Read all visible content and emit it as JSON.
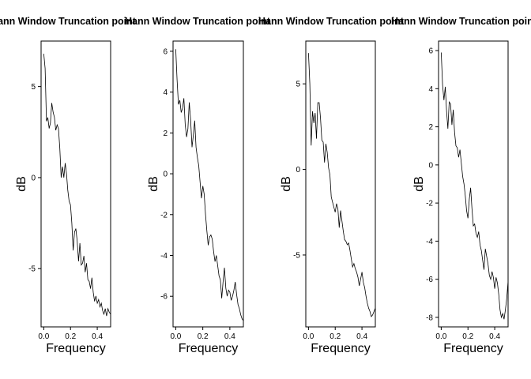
{
  "chart_data": [
    {
      "type": "line",
      "title": "Hann Window Truncation point",
      "xlabel": "Frequency",
      "ylabel": "dB",
      "xlim": [
        -0.02,
        0.5
      ],
      "ylim": [
        -8.2,
        7.5
      ],
      "xticks": [
        0.0,
        0.2,
        0.4
      ],
      "xtick_labels": [
        "0.0",
        "0.2",
        "0.4"
      ],
      "yticks": [
        -5,
        0,
        5
      ],
      "ytick_labels": [
        "-5",
        "0",
        "5"
      ],
      "grid": false,
      "x": [
        0.0,
        0.01,
        0.02,
        0.03,
        0.04,
        0.05,
        0.06,
        0.07,
        0.08,
        0.09,
        0.1,
        0.11,
        0.12,
        0.13,
        0.14,
        0.15,
        0.16,
        0.17,
        0.18,
        0.19,
        0.2,
        0.21,
        0.22,
        0.23,
        0.24,
        0.25,
        0.26,
        0.27,
        0.28,
        0.29,
        0.3,
        0.31,
        0.32,
        0.33,
        0.34,
        0.35,
        0.36,
        0.37,
        0.38,
        0.39,
        0.4,
        0.41,
        0.42,
        0.43,
        0.44,
        0.45,
        0.46,
        0.47,
        0.48,
        0.49,
        0.5
      ],
      "values": [
        6.8,
        6.0,
        3.1,
        3.3,
        2.7,
        3.0,
        4.1,
        3.6,
        3.3,
        2.6,
        2.9,
        2.7,
        1.6,
        0.0,
        0.6,
        0.0,
        0.8,
        0.2,
        -0.7,
        -1.3,
        -1.5,
        -2.5,
        -4.0,
        -3.0,
        -2.8,
        -3.5,
        -4.6,
        -3.6,
        -4.8,
        -4.7,
        -4.3,
        -5.2,
        -4.7,
        -5.6,
        -5.7,
        -6.1,
        -5.5,
        -6.3,
        -6.8,
        -6.5,
        -6.9,
        -6.7,
        -7.1,
        -6.9,
        -7.3,
        -7.5,
        -7.2,
        -7.6,
        -7.2,
        -7.4,
        -7.5
      ]
    },
    {
      "type": "line",
      "title": "Hann Window Truncation point",
      "xlabel": "Frequency",
      "ylabel": "dB",
      "xlim": [
        -0.02,
        0.5
      ],
      "ylim": [
        -7.5,
        6.5
      ],
      "xticks": [
        0.0,
        0.2,
        0.4
      ],
      "xtick_labels": [
        "0.0",
        "0.2",
        "0.4"
      ],
      "yticks": [
        -6,
        -4,
        -2,
        0,
        2,
        4,
        6
      ],
      "ytick_labels": [
        "-6",
        "-4",
        "-2",
        "0",
        "2",
        "4",
        "6"
      ],
      "grid": false,
      "x": [
        0.0,
        0.01,
        0.02,
        0.03,
        0.04,
        0.05,
        0.06,
        0.07,
        0.08,
        0.09,
        0.1,
        0.11,
        0.12,
        0.13,
        0.14,
        0.15,
        0.16,
        0.17,
        0.18,
        0.19,
        0.2,
        0.21,
        0.22,
        0.23,
        0.24,
        0.25,
        0.26,
        0.27,
        0.28,
        0.29,
        0.3,
        0.31,
        0.32,
        0.33,
        0.34,
        0.35,
        0.36,
        0.37,
        0.38,
        0.39,
        0.4,
        0.41,
        0.42,
        0.43,
        0.44,
        0.45,
        0.46,
        0.47,
        0.48,
        0.49,
        0.5
      ],
      "values": [
        6.1,
        4.6,
        3.4,
        3.6,
        3.0,
        3.2,
        3.7,
        2.4,
        1.8,
        2.2,
        3.5,
        2.6,
        1.3,
        1.9,
        2.6,
        1.3,
        0.8,
        0.4,
        -0.4,
        -1.2,
        -0.6,
        -1.0,
        -2.0,
        -2.8,
        -3.5,
        -3.1,
        -3.0,
        -3.2,
        -3.8,
        -4.3,
        -4.0,
        -4.5,
        -5.0,
        -5.2,
        -6.1,
        -5.3,
        -4.6,
        -5.6,
        -6.0,
        -5.7,
        -5.8,
        -6.2,
        -6.0,
        -5.7,
        -5.3,
        -5.9,
        -6.4,
        -6.6,
        -6.9,
        -7.1,
        -7.2
      ]
    },
    {
      "type": "line",
      "title": "Hann Window Truncation point",
      "xlabel": "Frequency",
      "ylabel": "dB",
      "xlim": [
        -0.02,
        0.5
      ],
      "ylim": [
        -9.2,
        7.5
      ],
      "xticks": [
        0.0,
        0.2,
        0.4
      ],
      "xtick_labels": [
        "0.0",
        "0.2",
        "0.4"
      ],
      "yticks": [
        -5,
        0,
        5
      ],
      "ytick_labels": [
        "-5",
        "0",
        "5"
      ],
      "grid": false,
      "x": [
        0.0,
        0.01,
        0.02,
        0.03,
        0.04,
        0.05,
        0.06,
        0.07,
        0.08,
        0.09,
        0.1,
        0.11,
        0.12,
        0.13,
        0.14,
        0.15,
        0.16,
        0.17,
        0.18,
        0.19,
        0.2,
        0.21,
        0.22,
        0.23,
        0.24,
        0.25,
        0.26,
        0.27,
        0.28,
        0.29,
        0.3,
        0.31,
        0.32,
        0.33,
        0.34,
        0.35,
        0.36,
        0.37,
        0.38,
        0.39,
        0.4,
        0.41,
        0.42,
        0.43,
        0.44,
        0.45,
        0.46,
        0.47,
        0.48,
        0.49,
        0.5
      ],
      "values": [
        6.8,
        5.0,
        1.4,
        3.4,
        2.7,
        3.3,
        1.8,
        3.9,
        3.9,
        3.0,
        1.7,
        1.6,
        0.4,
        1.5,
        1.0,
        0.1,
        -0.3,
        -1.6,
        -1.9,
        -2.2,
        -2.5,
        -2.0,
        -2.3,
        -3.4,
        -2.4,
        -3.0,
        -3.6,
        -4.1,
        -4.2,
        -4.4,
        -4.3,
        -4.7,
        -5.2,
        -5.7,
        -5.5,
        -5.8,
        -6.0,
        -6.3,
        -6.8,
        -6.4,
        -6.0,
        -6.6,
        -6.9,
        -7.4,
        -7.8,
        -8.1,
        -8.3,
        -8.6,
        -8.5,
        -8.3,
        -8.1
      ]
    },
    {
      "type": "line",
      "title": "Hann Window Truncation point",
      "xlabel": "Frequency",
      "ylabel": "dB",
      "xlim": [
        -0.02,
        0.5
      ],
      "ylim": [
        -8.5,
        6.5
      ],
      "xticks": [
        0.0,
        0.2,
        0.4
      ],
      "xtick_labels": [
        "0.0",
        "0.2",
        "0.4"
      ],
      "yticks": [
        -8,
        -6,
        -4,
        -2,
        0,
        2,
        4,
        6
      ],
      "ytick_labels": [
        "-8",
        "-6",
        "-4",
        "-2",
        "0",
        "2",
        "4",
        "6"
      ],
      "grid": false,
      "x": [
        0.0,
        0.01,
        0.02,
        0.03,
        0.04,
        0.05,
        0.06,
        0.07,
        0.08,
        0.09,
        0.1,
        0.11,
        0.12,
        0.13,
        0.14,
        0.15,
        0.16,
        0.17,
        0.18,
        0.19,
        0.2,
        0.21,
        0.22,
        0.23,
        0.24,
        0.25,
        0.26,
        0.27,
        0.28,
        0.29,
        0.3,
        0.31,
        0.32,
        0.33,
        0.34,
        0.35,
        0.36,
        0.37,
        0.38,
        0.39,
        0.4,
        0.41,
        0.42,
        0.43,
        0.44,
        0.45,
        0.46,
        0.47,
        0.48,
        0.49,
        0.5
      ],
      "values": [
        5.9,
        4.2,
        3.4,
        4.1,
        2.8,
        1.9,
        3.3,
        3.2,
        2.1,
        2.9,
        1.7,
        1.0,
        0.9,
        0.4,
        0.8,
        0.1,
        -0.6,
        -1.0,
        -1.6,
        -2.4,
        -2.8,
        -1.8,
        -1.2,
        -2.3,
        -3.2,
        -3.1,
        -3.6,
        -3.8,
        -3.5,
        -4.2,
        -4.5,
        -5.0,
        -5.5,
        -4.4,
        -4.8,
        -5.2,
        -5.8,
        -6.0,
        -5.6,
        -5.9,
        -6.5,
        -5.9,
        -6.2,
        -6.8,
        -7.6,
        -8.0,
        -7.8,
        -8.1,
        -7.6,
        -7.0,
        -6.1
      ]
    }
  ]
}
